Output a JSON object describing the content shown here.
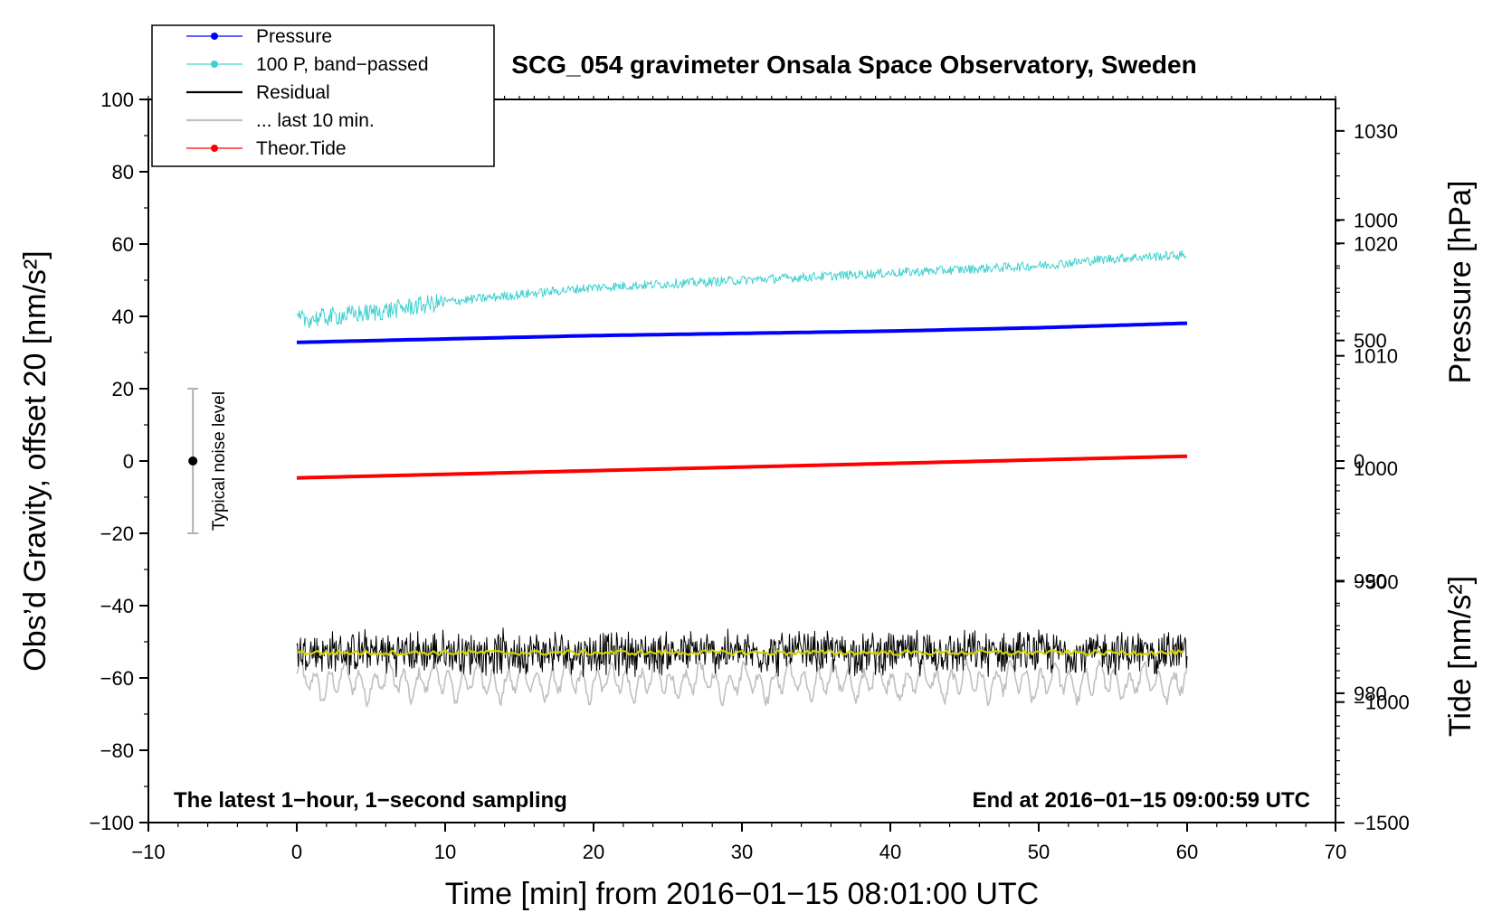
{
  "chart_data": {
    "type": "line",
    "title": "SCG_054 gravimeter Onsala Space Observatory, Sweden",
    "xlabel": "Time [min] from 2016−01−15 08:01:00 UTC",
    "ylabel_left": "Obs’d Gravity, offset 20 [nm/s²]",
    "ylabel_right_top": "Pressure [hPa]",
    "ylabel_right_bottom": "Tide [nm/s²]",
    "xlim": [
      -10,
      70
    ],
    "ylim_left": [
      -100,
      100
    ],
    "x_ticks": [
      "−10",
      "0",
      "10",
      "20",
      "30",
      "40",
      "50",
      "60",
      "70"
    ],
    "x_tick_values": [
      -10,
      0,
      10,
      20,
      30,
      40,
      50,
      60,
      70
    ],
    "y_left_ticks": [
      "100",
      "80",
      "60",
      "40",
      "20",
      "0",
      "−20",
      "−40",
      "−60",
      "−80",
      "−100"
    ],
    "y_left_tick_values": [
      100,
      80,
      60,
      40,
      20,
      0,
      -20,
      -40,
      -60,
      -80,
      -100
    ],
    "pressure_axis": {
      "ticks": [
        "1030",
        "1020",
        "1010",
        "1000",
        "990",
        "980"
      ],
      "values": [
        1030,
        1020,
        1010,
        1000,
        990,
        980
      ],
      "lim": [
        968.5,
        1032.8
      ]
    },
    "tide_axis": {
      "ticks": [
        "1000",
        "500",
        "0",
        "−500",
        "−1000",
        "−1500"
      ],
      "values": [
        1000,
        500,
        0,
        -500,
        -1000,
        -1500
      ],
      "lim": [
        -1500,
        1500
      ]
    },
    "legend": [
      {
        "label": "Pressure",
        "color": "#0000ff",
        "marker": true
      },
      {
        "label": "100 P, band−passed",
        "color": "#40d0d0",
        "marker": true
      },
      {
        "label": "Residual",
        "color": "#000000",
        "marker": false
      },
      {
        "label": "... last 10 min.",
        "color": "#c0c0c0",
        "marker": false
      },
      {
        "label": "Theor.Tide",
        "color": "#ff0000",
        "marker": true
      }
    ],
    "series": [
      {
        "name": "Pressure",
        "color": "#0000ff",
        "axis": "pressure",
        "x": [
          0,
          10,
          20,
          30,
          40,
          50,
          60
        ],
        "values": [
          1011.2,
          1011.5,
          1011.8,
          1012.0,
          1012.2,
          1012.5,
          1012.9
        ]
      },
      {
        "name": "100 P, band−passed",
        "color": "#40d0d0",
        "axis": "left",
        "x": [
          0,
          5,
          10,
          15,
          20,
          25,
          30,
          35,
          40,
          45,
          50,
          55,
          60
        ],
        "values": [
          39,
          41,
          44,
          46,
          48,
          49,
          50,
          51,
          52,
          53,
          54,
          56,
          57
        ]
      },
      {
        "name": "Residual",
        "color": "#000000",
        "axis": "left",
        "x": [
          0,
          60
        ],
        "values": [
          -53,
          -53
        ],
        "noise": 5
      },
      {
        "name": "Residual smoothed",
        "color": "#d4d400",
        "axis": "left",
        "x": [
          0,
          60
        ],
        "values": [
          -53,
          -53
        ]
      },
      {
        "name": "... last 10 min.",
        "color": "#c0c0c0",
        "axis": "left",
        "x": [
          0,
          60
        ],
        "values": [
          -61,
          -61
        ],
        "noise": 5
      },
      {
        "name": "Theor.Tide",
        "color": "#ff0000",
        "axis": "tide",
        "x": [
          0,
          10,
          20,
          30,
          40,
          50,
          60
        ],
        "values": [
          -70,
          -55,
          -40,
          -25,
          -10,
          5,
          20
        ]
      }
    ],
    "noise_bar": {
      "label": "Typical noise level",
      "x": -7,
      "center": 0,
      "low": -20,
      "high": 20
    },
    "annotations": [
      "The latest 1−hour, 1−second sampling",
      "End at 2016−01−15 09:00:59 UTC"
    ]
  }
}
